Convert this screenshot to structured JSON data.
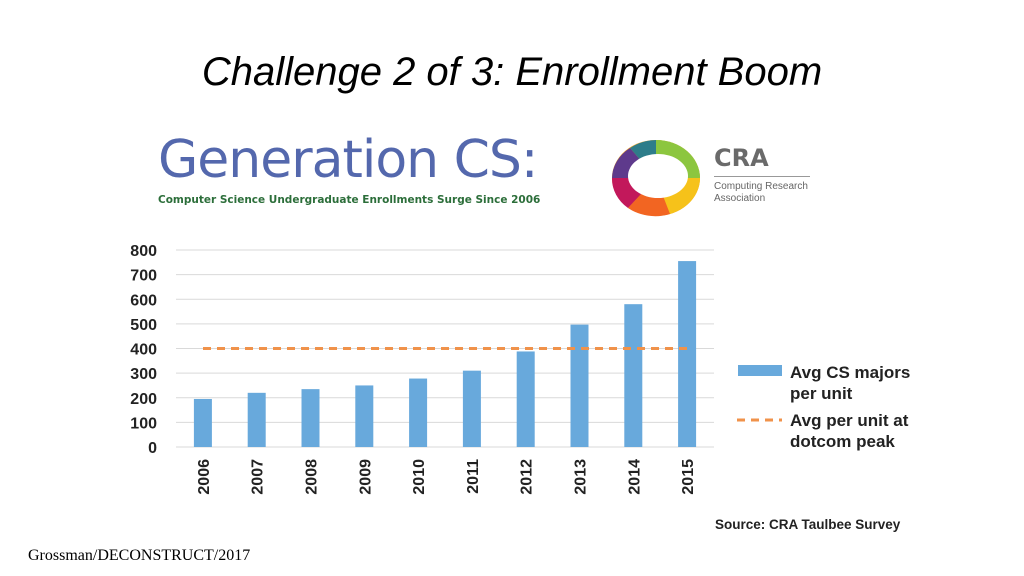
{
  "slide": {
    "title": "Challenge 2 of 3: Enrollment Boom",
    "footer": "Grossman/DECONSTRUCT/2017"
  },
  "header": {
    "title": "Generation CS:",
    "subtitle": "Computer Science Undergraduate Enrollments Surge Since 2006"
  },
  "cra": {
    "name": "CRA",
    "line1": "Computing Research",
    "line2": "Association"
  },
  "source": "Source: CRA Taulbee Survey",
  "colors": {
    "bar": "#68a9dc",
    "reference_line": "#f0924a",
    "grid": "#d9d9d9",
    "title_blue": "#5468ad",
    "subtitle_green": "#2c6e3a"
  },
  "chart_data": {
    "type": "bar",
    "categories": [
      "2006",
      "2007",
      "2008",
      "2009",
      "2010",
      "2011",
      "2012",
      "2013",
      "2014",
      "2015"
    ],
    "series": [
      {
        "name": "Avg CS majors per unit",
        "values": [
          195,
          220,
          235,
          250,
          278,
          310,
          388,
          497,
          580,
          755
        ]
      }
    ],
    "reference_lines": [
      {
        "name": "Avg per unit at dotcom peak",
        "value": 400,
        "style": "dashed"
      }
    ],
    "ylim": [
      0,
      800
    ],
    "yticks": [
      0,
      100,
      200,
      300,
      400,
      500,
      600,
      700,
      800
    ],
    "grid": true,
    "legend_position": "right",
    "legend": {
      "bar_line1": "Avg CS majors",
      "bar_line2": "per unit",
      "ref_line1": "Avg per unit at",
      "ref_line2": "dotcom peak"
    }
  }
}
